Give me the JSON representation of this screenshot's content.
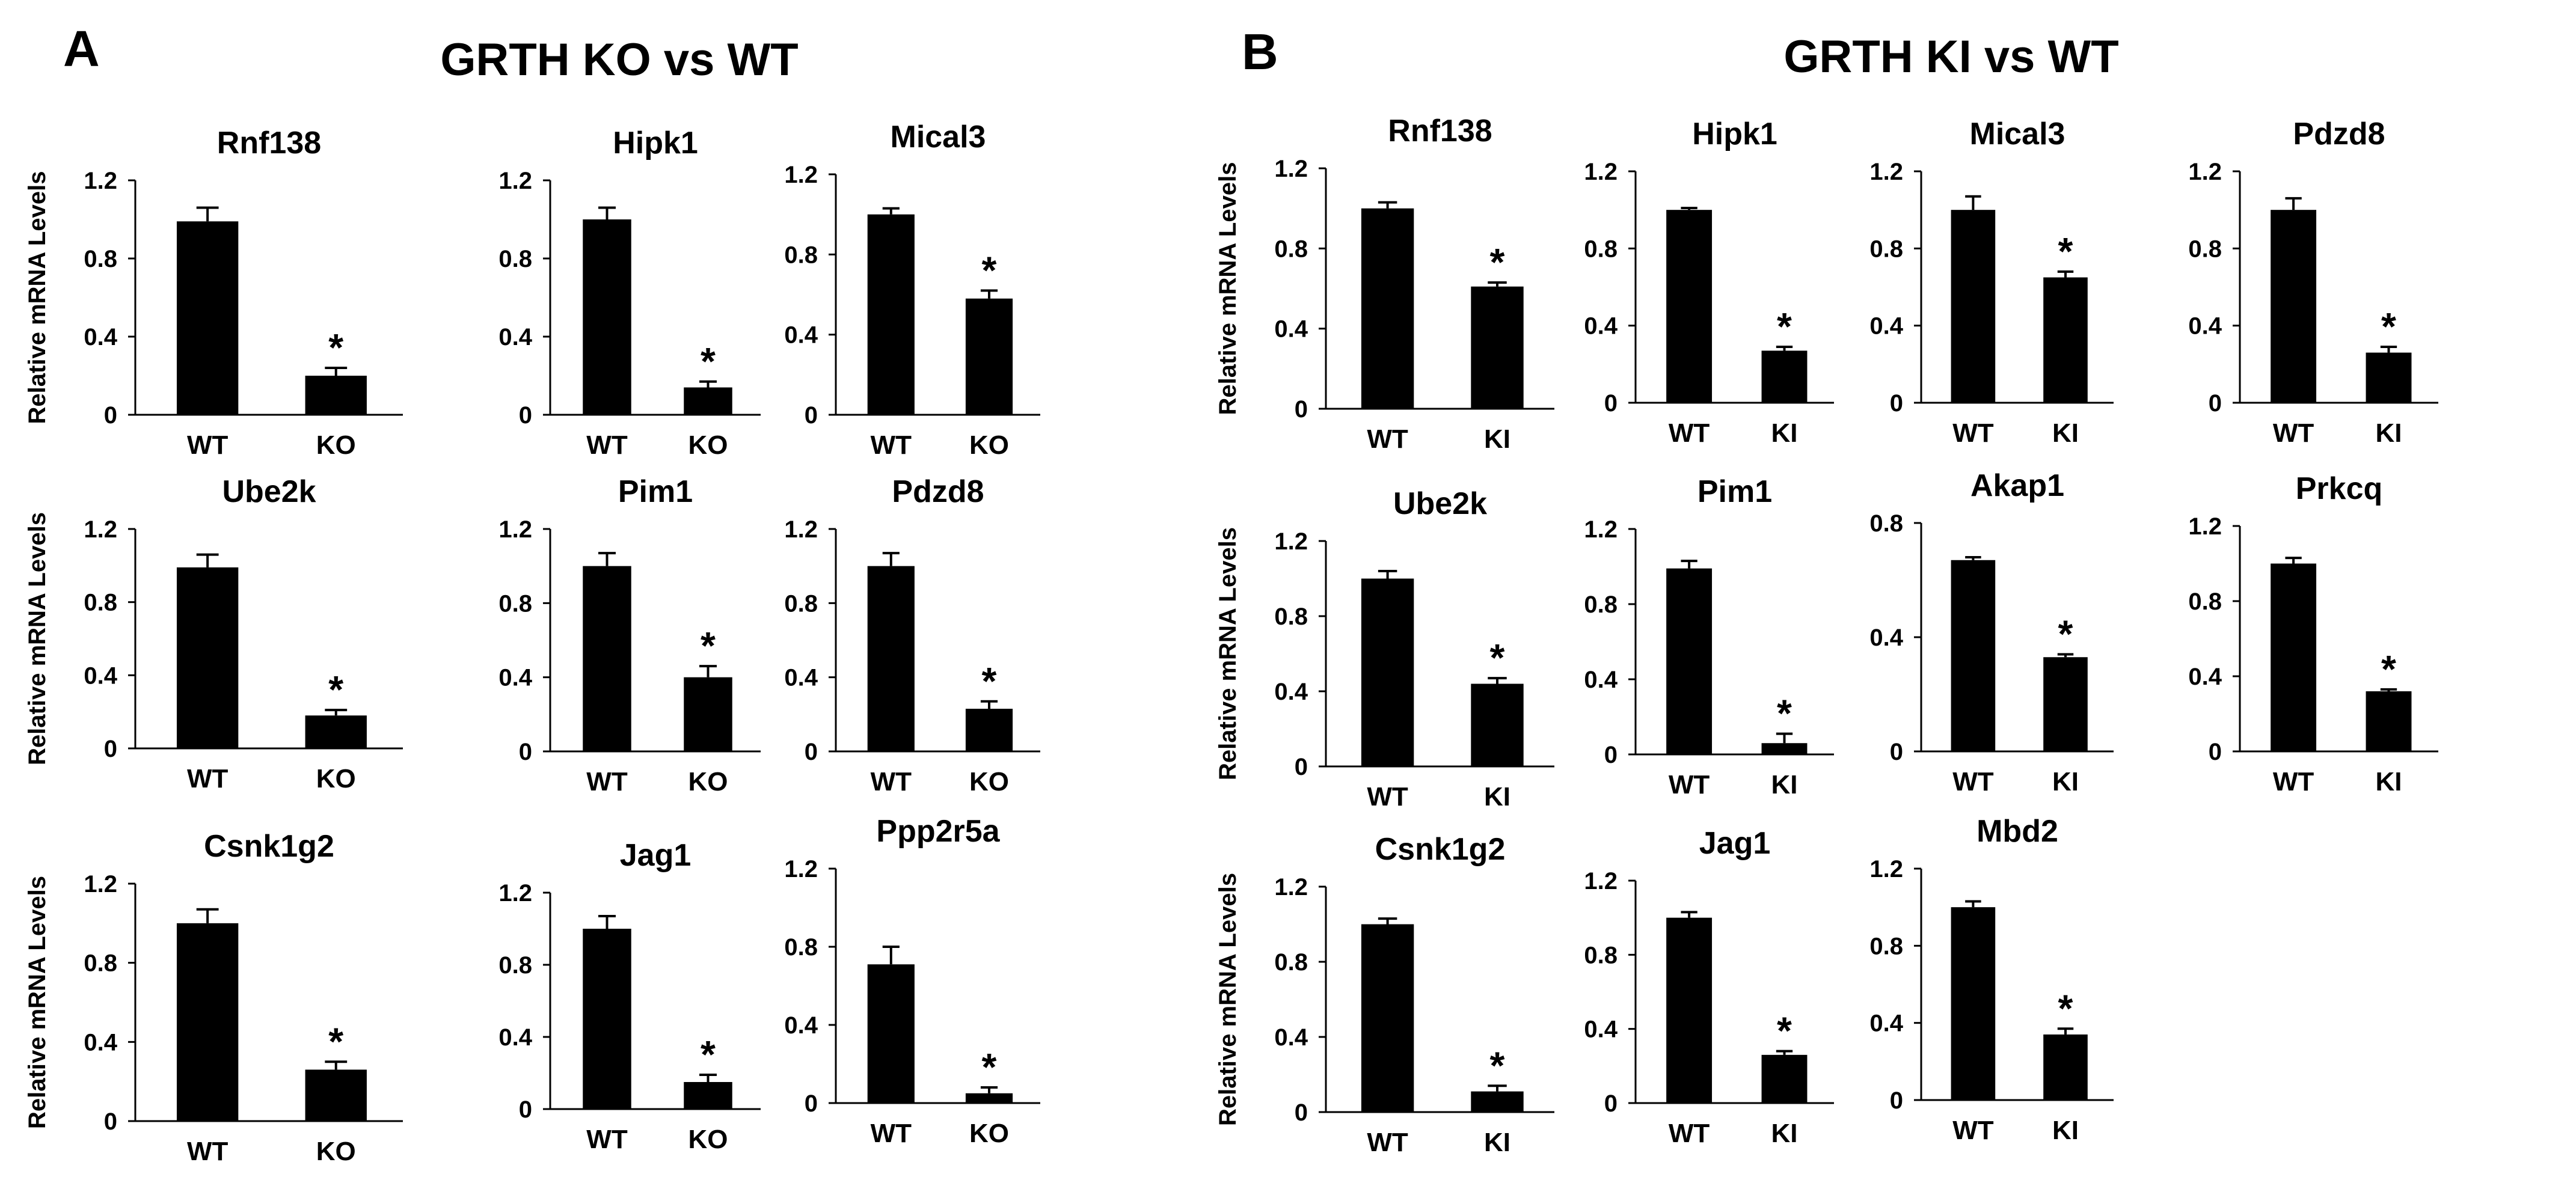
{
  "panels": [
    {
      "letter": "A",
      "title": "GRTH KO vs WT"
    },
    {
      "letter": "B",
      "title": "GRTH KI vs WT"
    }
  ],
  "chart_data": [
    {
      "panel": "A",
      "type": "bar",
      "title": "Rnf138",
      "categories": [
        "WT",
        "KO"
      ],
      "values": [
        0.99,
        0.2
      ],
      "errors": [
        0.07,
        0.04
      ],
      "significant": [
        false,
        true
      ],
      "significance_marker": "*",
      "ylabel": "Relative mRNA Levels",
      "ylim": [
        0,
        1.2
      ],
      "yticks": [
        "0",
        "0.4",
        "0.8",
        "1.2"
      ]
    },
    {
      "panel": "A",
      "type": "bar",
      "title": "Hipk1",
      "categories": [
        "WT",
        "KO"
      ],
      "values": [
        1.0,
        0.14
      ],
      "errors": [
        0.06,
        0.03
      ],
      "significant": [
        false,
        true
      ],
      "significance_marker": "*",
      "ylabel": "",
      "ylim": [
        0,
        1.2
      ],
      "yticks": [
        "0",
        "0.4",
        "0.8",
        "1.2"
      ]
    },
    {
      "panel": "A",
      "type": "bar",
      "title": "Mical3",
      "categories": [
        "WT",
        "KO"
      ],
      "values": [
        1.0,
        0.58
      ],
      "errors": [
        0.03,
        0.04
      ],
      "significant": [
        false,
        true
      ],
      "significance_marker": "*",
      "ylabel": "",
      "ylim": [
        0,
        1.2
      ],
      "yticks": [
        "0",
        "0.4",
        "0.8",
        "1.2"
      ]
    },
    {
      "panel": "A",
      "type": "bar",
      "title": "Ube2k",
      "categories": [
        "WT",
        "KO"
      ],
      "values": [
        0.99,
        0.18
      ],
      "errors": [
        0.07,
        0.03
      ],
      "significant": [
        false,
        true
      ],
      "significance_marker": "*",
      "ylabel": "Relative mRNA Levels",
      "ylim": [
        0,
        1.2
      ],
      "yticks": [
        "0",
        "0.4",
        "0.8",
        "1.2"
      ]
    },
    {
      "panel": "A",
      "type": "bar",
      "title": "Pim1",
      "categories": [
        "WT",
        "KO"
      ],
      "values": [
        1.0,
        0.4
      ],
      "errors": [
        0.07,
        0.06
      ],
      "significant": [
        false,
        true
      ],
      "significance_marker": "*",
      "ylabel": "",
      "ylim": [
        0,
        1.2
      ],
      "yticks": [
        "0",
        "0.4",
        "0.8",
        "1.2"
      ]
    },
    {
      "panel": "A",
      "type": "bar",
      "title": "Pdzd8",
      "categories": [
        "WT",
        "KO"
      ],
      "values": [
        1.0,
        0.23
      ],
      "errors": [
        0.07,
        0.04
      ],
      "significant": [
        false,
        true
      ],
      "significance_marker": "*",
      "ylabel": "",
      "ylim": [
        0,
        1.2
      ],
      "yticks": [
        "0",
        "0.4",
        "0.8",
        "1.2"
      ]
    },
    {
      "panel": "A",
      "type": "bar",
      "title": "Csnk1g2",
      "categories": [
        "WT",
        "KO"
      ],
      "values": [
        1.0,
        0.26
      ],
      "errors": [
        0.07,
        0.04
      ],
      "significant": [
        false,
        true
      ],
      "significance_marker": "*",
      "ylabel": "Relative mRNA Levels",
      "ylim": [
        0,
        1.2
      ],
      "yticks": [
        "0",
        "0.4",
        "0.8",
        "1.2"
      ]
    },
    {
      "panel": "A",
      "type": "bar",
      "title": "Jag1",
      "categories": [
        "WT",
        "KO"
      ],
      "values": [
        1.0,
        0.15
      ],
      "errors": [
        0.07,
        0.04
      ],
      "significant": [
        false,
        true
      ],
      "significance_marker": "*",
      "ylabel": "",
      "ylim": [
        0,
        1.2
      ],
      "yticks": [
        "0",
        "0.4",
        "0.8",
        "1.2"
      ]
    },
    {
      "panel": "A",
      "type": "bar",
      "title": "Ppp2r5a",
      "categories": [
        "WT",
        "KO"
      ],
      "values": [
        0.71,
        0.05
      ],
      "errors": [
        0.09,
        0.03
      ],
      "significant": [
        false,
        true
      ],
      "significance_marker": "*",
      "ylabel": "",
      "ylim": [
        0,
        1.2
      ],
      "yticks": [
        "0",
        "0.4",
        "0.8",
        "1.2"
      ]
    },
    {
      "panel": "B",
      "type": "bar",
      "title": "Rnf138",
      "categories": [
        "WT",
        "KI"
      ],
      "values": [
        1.0,
        0.61
      ],
      "errors": [
        0.03,
        0.02
      ],
      "significant": [
        false,
        true
      ],
      "significance_marker": "*",
      "ylabel": "Relative mRNA Levels",
      "ylim": [
        0,
        1.2
      ],
      "yticks": [
        "0",
        "0.4",
        "0.8",
        "1.2"
      ]
    },
    {
      "panel": "B",
      "type": "bar",
      "title": "Hipk1",
      "categories": [
        "WT",
        "KI"
      ],
      "values": [
        1.0,
        0.27
      ],
      "errors": [
        0.01,
        0.02
      ],
      "significant": [
        false,
        true
      ],
      "significance_marker": "*",
      "ylabel": "",
      "ylim": [
        0,
        1.2
      ],
      "yticks": [
        "0",
        "0.4",
        "0.8",
        "1.2"
      ]
    },
    {
      "panel": "B",
      "type": "bar",
      "title": "Mical3",
      "categories": [
        "WT",
        "KI"
      ],
      "values": [
        1.0,
        0.65
      ],
      "errors": [
        0.07,
        0.03
      ],
      "significant": [
        false,
        true
      ],
      "significance_marker": "*",
      "ylabel": "",
      "ylim": [
        0,
        1.2
      ],
      "yticks": [
        "0",
        "0.4",
        "0.8",
        "1.2"
      ]
    },
    {
      "panel": "B",
      "type": "bar",
      "title": "Pdzd8",
      "categories": [
        "WT",
        "KI"
      ],
      "values": [
        1.0,
        0.26
      ],
      "errors": [
        0.06,
        0.03
      ],
      "significant": [
        false,
        true
      ],
      "significance_marker": "*",
      "ylabel": "",
      "ylim": [
        0,
        1.2
      ],
      "yticks": [
        "0",
        "0.4",
        "0.8",
        "1.2"
      ]
    },
    {
      "panel": "B",
      "type": "bar",
      "title": "Ube2k",
      "categories": [
        "WT",
        "KI"
      ],
      "values": [
        1.0,
        0.44
      ],
      "errors": [
        0.04,
        0.03
      ],
      "significant": [
        false,
        true
      ],
      "significance_marker": "*",
      "ylabel": "Relative mRNA Levels",
      "ylim": [
        0,
        1.2
      ],
      "yticks": [
        "0",
        "0.4",
        "0.8",
        "1.2"
      ]
    },
    {
      "panel": "B",
      "type": "bar",
      "title": "Pim1",
      "categories": [
        "WT",
        "KI"
      ],
      "values": [
        0.99,
        0.06
      ],
      "errors": [
        0.04,
        0.05
      ],
      "significant": [
        false,
        true
      ],
      "significance_marker": "*",
      "ylabel": "",
      "ylim": [
        0,
        1.2
      ],
      "yticks": [
        "0",
        "0.4",
        "0.8",
        "1.2"
      ]
    },
    {
      "panel": "B",
      "type": "bar",
      "title": "Akap1",
      "categories": [
        "WT",
        "KI"
      ],
      "values": [
        0.67,
        0.33
      ],
      "errors": [
        0.01,
        0.01
      ],
      "significant": [
        false,
        true
      ],
      "significance_marker": "*",
      "ylabel": "",
      "ylim": [
        0,
        0.8
      ],
      "yticks": [
        "0",
        "0.4",
        "0.8"
      ]
    },
    {
      "panel": "B",
      "type": "bar",
      "title": "Prkcq",
      "categories": [
        "WT",
        "KI"
      ],
      "values": [
        1.0,
        0.32
      ],
      "errors": [
        0.03,
        0.01
      ],
      "significant": [
        false,
        true
      ],
      "significance_marker": "*",
      "ylabel": "",
      "ylim": [
        0,
        1.2
      ],
      "yticks": [
        "0",
        "0.4",
        "0.8",
        "1.2"
      ]
    },
    {
      "panel": "B",
      "type": "bar",
      "title": "Csnk1g2",
      "categories": [
        "WT",
        "KI"
      ],
      "values": [
        1.0,
        0.11
      ],
      "errors": [
        0.03,
        0.03
      ],
      "significant": [
        false,
        true
      ],
      "significance_marker": "*",
      "ylabel": "Relative mRNA Levels",
      "ylim": [
        0,
        1.2
      ],
      "yticks": [
        "0",
        "0.4",
        "0.8",
        "1.2"
      ]
    },
    {
      "panel": "B",
      "type": "bar",
      "title": "Jag1",
      "categories": [
        "WT",
        "KI"
      ],
      "values": [
        1.0,
        0.26
      ],
      "errors": [
        0.03,
        0.02
      ],
      "significant": [
        false,
        true
      ],
      "significance_marker": "*",
      "ylabel": "",
      "ylim": [
        0,
        1.2
      ],
      "yticks": [
        "0",
        "0.4",
        "0.8",
        "1.2"
      ]
    },
    {
      "panel": "B",
      "type": "bar",
      "title": "Mbd2",
      "categories": [
        "WT",
        "KI"
      ],
      "values": [
        1.0,
        0.34
      ],
      "errors": [
        0.03,
        0.03
      ],
      "significant": [
        false,
        true
      ],
      "significance_marker": "*",
      "ylabel": "",
      "ylim": [
        0,
        1.2
      ],
      "yticks": [
        "0",
        "0.4",
        "0.8",
        "1.2"
      ]
    }
  ]
}
